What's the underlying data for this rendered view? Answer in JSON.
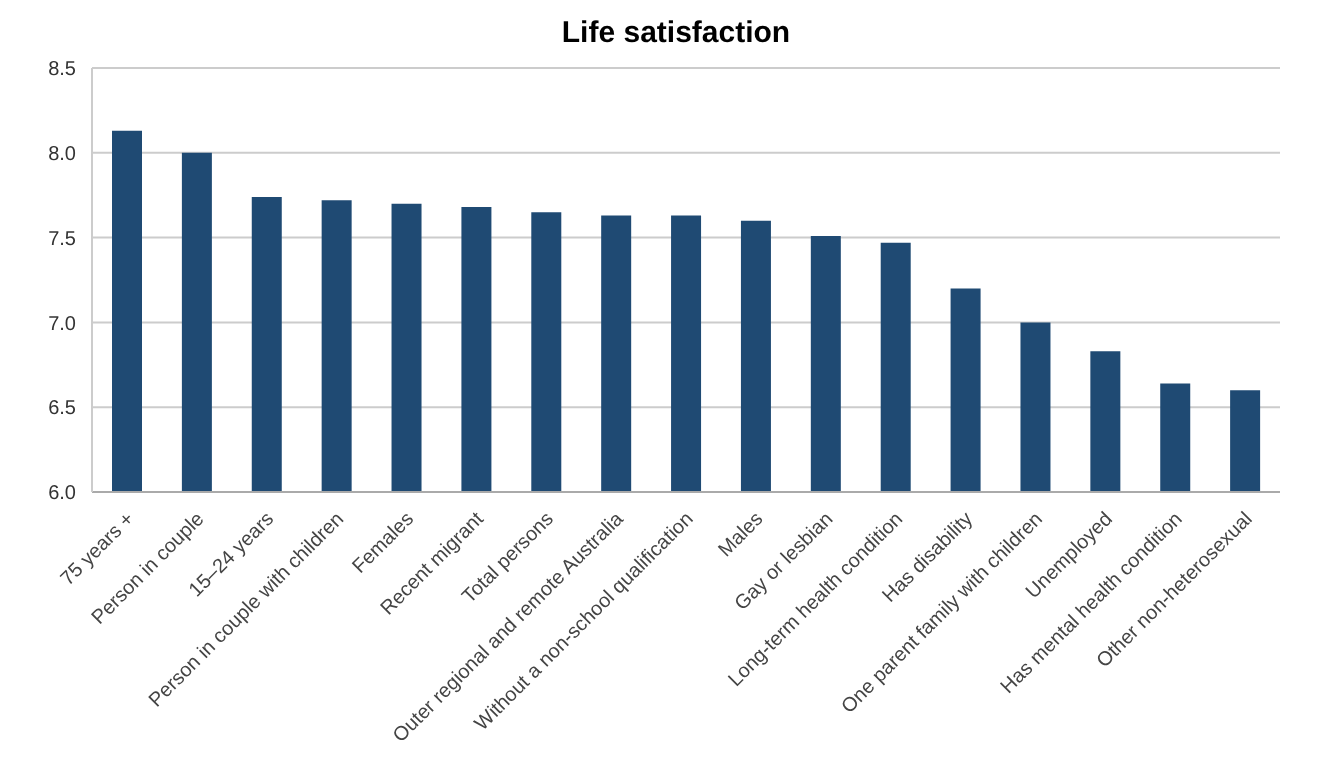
{
  "chart_data": {
    "type": "bar",
    "title": "Life satisfaction",
    "categories": [
      "75 years +",
      "Person in couple",
      "15–24 years",
      "Person in couple with children",
      "Females",
      "Recent migrant",
      "Total persons",
      "Outer regional and remote Australia",
      "Without a non-school qualification",
      "Males",
      "Gay or lesbian",
      "Long-term health condition",
      "Has disability",
      "One parent family with children",
      "Unemployed",
      "Has mental health condition",
      "Other non-heterosexual"
    ],
    "values": [
      8.13,
      8.0,
      7.74,
      7.72,
      7.7,
      7.68,
      7.65,
      7.63,
      7.63,
      7.6,
      7.51,
      7.47,
      7.2,
      7.0,
      6.83,
      6.64,
      6.6
    ],
    "color": "#1f4a73",
    "ylim": [
      6.0,
      8.5
    ],
    "yticks": [
      {
        "value": 6,
        "label": "6.0"
      },
      {
        "value": 6.5,
        "label": "6.5"
      },
      {
        "value": 7,
        "label": "7.0"
      },
      {
        "value": 7.5,
        "label": "7.5"
      },
      {
        "value": 8,
        "label": "8.0"
      },
      {
        "value": 8.5,
        "label": "8.5"
      }
    ],
    "grid": "y",
    "legend": false
  }
}
